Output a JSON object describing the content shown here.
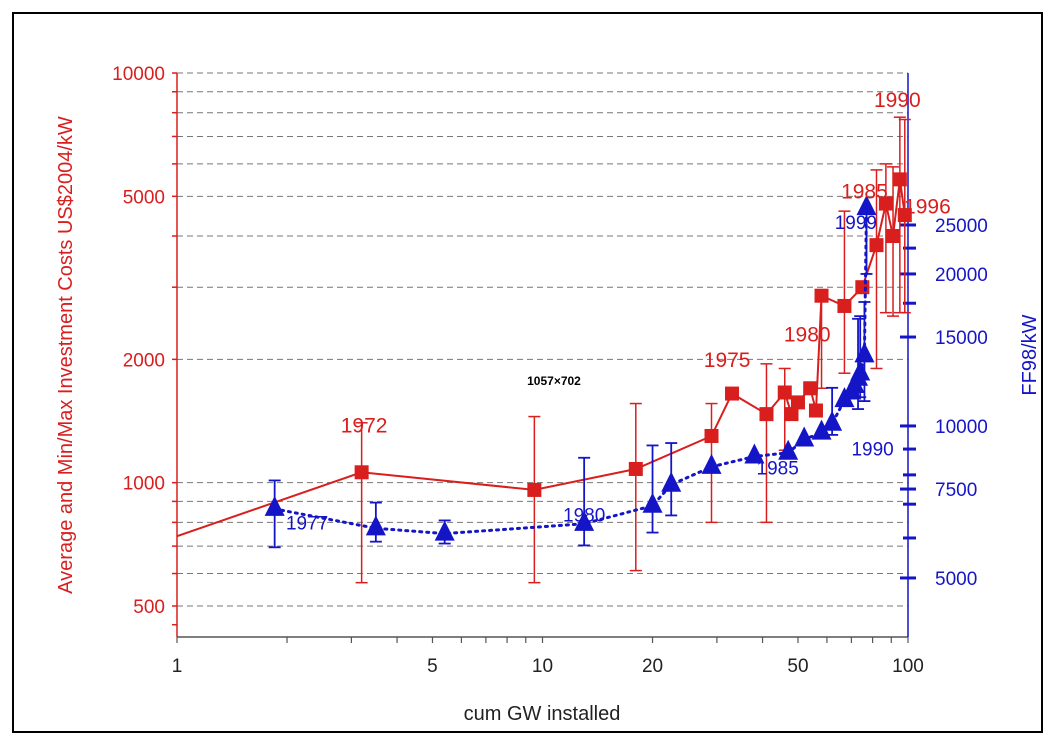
{
  "chart_data": {
    "type": "line",
    "xlabel": "cum GW installed",
    "ylabel_left": "Average and Min/Max Investment Costs US$2004/kW",
    "ylabel_right": "FF98/kW",
    "x_scale": "log",
    "y_scale": "log",
    "xlim": [
      1,
      100
    ],
    "ylim_left": [
      420,
      10000
    ],
    "ylim_right": [
      3820,
      50000
    ],
    "x_ticks": [
      1,
      5,
      10,
      20,
      50,
      100
    ],
    "y_ticks_left": [
      500,
      1000,
      2000,
      5000,
      10000
    ],
    "y_ticks_right": [
      5000,
      7500,
      10000,
      15000,
      20000,
      25000
    ],
    "grid": "horizontal dashed",
    "colors": {
      "red": "#d91e1e",
      "blue": "#1515c8"
    },
    "watermark": "1057×702",
    "series": [
      {
        "axis": "left",
        "color": "#d91e1e",
        "marker": "square",
        "line": "solid",
        "points": [
          {
            "x": 1.0,
            "y": 740
          },
          {
            "x": 3.2,
            "y": 1060,
            "min": 570,
            "max": 1400
          },
          {
            "x": 9.5,
            "y": 960,
            "min": 570,
            "max": 1450
          },
          {
            "x": 18,
            "y": 1080,
            "min": 610,
            "max": 1560
          },
          {
            "x": 29,
            "y": 1300,
            "min": 800,
            "max": 1560
          },
          {
            "x": 33,
            "y": 1650
          },
          {
            "x": 41,
            "y": 1470,
            "min": 800,
            "max": 1950
          },
          {
            "x": 46,
            "y": 1660,
            "min": 1200,
            "max": 1900
          },
          {
            "x": 48,
            "y": 1470
          },
          {
            "x": 50,
            "y": 1570
          },
          {
            "x": 54,
            "y": 1700
          },
          {
            "x": 56,
            "y": 1500
          },
          {
            "x": 58,
            "y": 2860,
            "min": 1700,
            "max": 2900
          },
          {
            "x": 67,
            "y": 2700,
            "min": 1850,
            "max": 4600
          },
          {
            "x": 75,
            "y": 3000
          },
          {
            "x": 82,
            "y": 3800,
            "min": 1900,
            "max": 5800
          },
          {
            "x": 87,
            "y": 4800,
            "min": 2600,
            "max": 6000
          },
          {
            "x": 91,
            "y": 4000,
            "min": 2550,
            "max": 5900
          },
          {
            "x": 95,
            "y": 5500,
            "min": 2600,
            "max": 7800
          },
          {
            "x": 98,
            "y": 4500,
            "min": 2600,
            "max": 7700
          }
        ]
      },
      {
        "axis": "right",
        "color": "#1515c8",
        "marker": "triangle",
        "line": "dotted",
        "points": [
          {
            "x": 1.85,
            "y": 6850,
            "min": 5750,
            "max": 7800
          },
          {
            "x": 3.5,
            "y": 6270,
            "min": 5900,
            "max": 7050
          },
          {
            "x": 5.4,
            "y": 6120,
            "min": 5850,
            "max": 6500
          },
          {
            "x": 13,
            "y": 6400,
            "min": 5800,
            "max": 8650
          },
          {
            "x": 20,
            "y": 6950,
            "min": 6150,
            "max": 9150
          },
          {
            "x": 22.5,
            "y": 7650,
            "min": 6650,
            "max": 9250
          },
          {
            "x": 29,
            "y": 8300
          },
          {
            "x": 38,
            "y": 8700
          },
          {
            "x": 47,
            "y": 8850
          },
          {
            "x": 52,
            "y": 9400
          },
          {
            "x": 58,
            "y": 9700
          },
          {
            "x": 62,
            "y": 10100,
            "min": 9600,
            "max": 11900
          },
          {
            "x": 67,
            "y": 11250
          },
          {
            "x": 70,
            "y": 11650
          },
          {
            "x": 71.5,
            "y": 12000
          },
          {
            "x": 73,
            "y": 12400,
            "min": 10800,
            "max": 16300
          },
          {
            "x": 74,
            "y": 12700,
            "min": 11400,
            "max": 16500
          },
          {
            "x": 76,
            "y": 13800,
            "min": 11200,
            "max": 17600
          },
          {
            "x": 77,
            "y": 27000,
            "min": 20000,
            "max": 27000
          }
        ]
      }
    ],
    "annotations": [
      {
        "text": "1972",
        "color": "red",
        "x": 3.25,
        "y_left": 1380
      },
      {
        "text": "1975",
        "color": "red",
        "x": 32,
        "y_left": 1990
      },
      {
        "text": "1980",
        "color": "red",
        "x": 53,
        "y_left": 2300
      },
      {
        "text": "1985",
        "color": "red",
        "x": 76,
        "y_left": 5140
      },
      {
        "text": "1990",
        "color": "red",
        "x": 93.5,
        "y_left": 8600
      },
      {
        "text": "1996",
        "color": "red",
        "x": 113,
        "y_left": 4720
      },
      {
        "text": "1977",
        "color": "blue",
        "x": 2.27,
        "y_left": 800
      },
      {
        "text": "1980",
        "color": "blue",
        "x": 13,
        "y_left": 835
      },
      {
        "text": "1985",
        "color": "blue",
        "x": 44,
        "y_left": 1090
      },
      {
        "text": "1990",
        "color": "blue",
        "x": 80,
        "y_left": 1210
      },
      {
        "text": "1999",
        "color": "blue",
        "x": 72,
        "y_left": 4330
      }
    ]
  }
}
